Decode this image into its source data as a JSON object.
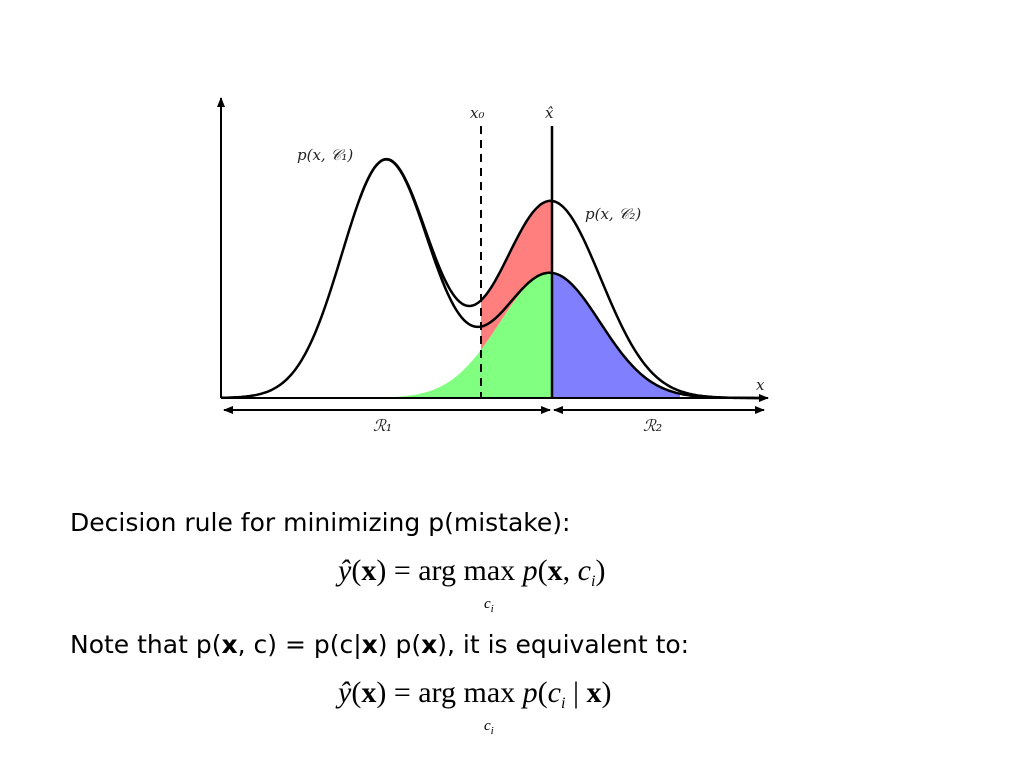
{
  "diagram": {
    "label_x0": "x₀",
    "label_xhat": "x̂",
    "label_pc1": "p(x, 𝒞₁)",
    "label_pc2": "p(x, 𝒞₂)",
    "label_axis_x": "x",
    "label_r1": "ℛ₁",
    "label_r2": "ℛ₂",
    "colors": {
      "red_region": "#ff7f7f",
      "green_region": "#80ff80",
      "blue_region": "#8080ff",
      "curve": "#000000"
    }
  },
  "text": {
    "decision_rule": "Decision rule for minimizing p(mistake):",
    "note_pre": "Note that p(",
    "note_x1": "x",
    "note_mid1": ", c) = p(c|",
    "note_x2": "x",
    "note_mid2": ") p(",
    "note_x3": "x",
    "note_post": "), it is equivalent to:"
  },
  "equations": {
    "eq1": {
      "yhat": "ŷ",
      "lhs_open": "(",
      "lhs_x": "x",
      "lhs_close": ") = arg max ",
      "p": "p",
      "rhs_open": "(",
      "rhs_x": "x",
      "rhs_comma": ", ",
      "rhs_c": "c",
      "rhs_i": "i",
      "rhs_close": ")",
      "under_c": "c",
      "under_i": "i"
    },
    "eq2": {
      "yhat": "ŷ",
      "lhs_open": "(",
      "lhs_x": "x",
      "lhs_close": ") = arg max ",
      "p": "p",
      "rhs_open": "(",
      "rhs_c": "c",
      "rhs_i": "i",
      "rhs_bar": " | ",
      "rhs_x": "x",
      "rhs_close": ")",
      "under_c": "c",
      "under_i": "i"
    }
  }
}
